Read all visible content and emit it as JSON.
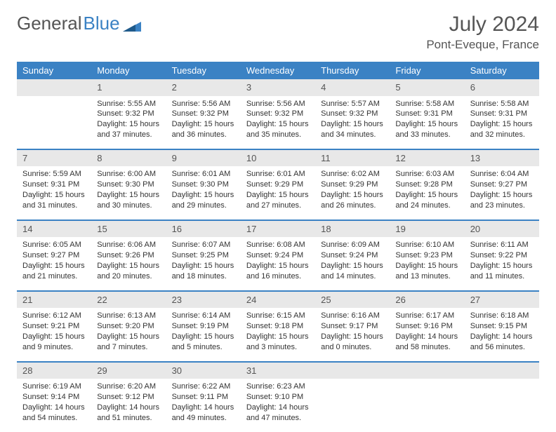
{
  "brand": {
    "part1": "General",
    "part2": "Blue"
  },
  "title": "July 2024",
  "location": "Pont-Eveque, France",
  "colors": {
    "header_bg": "#3b82c4",
    "header_text": "#ffffff",
    "daynum_bg": "#e8e8e8",
    "border_top": "#3b82c4",
    "text": "#333333"
  },
  "weekdays": [
    "Sunday",
    "Monday",
    "Tuesday",
    "Wednesday",
    "Thursday",
    "Friday",
    "Saturday"
  ],
  "weeks": [
    {
      "nums": [
        "",
        "1",
        "2",
        "3",
        "4",
        "5",
        "6"
      ],
      "cells": [
        {
          "lines": []
        },
        {
          "lines": [
            "Sunrise: 5:55 AM",
            "Sunset: 9:32 PM",
            "Daylight: 15 hours",
            "and 37 minutes."
          ]
        },
        {
          "lines": [
            "Sunrise: 5:56 AM",
            "Sunset: 9:32 PM",
            "Daylight: 15 hours",
            "and 36 minutes."
          ]
        },
        {
          "lines": [
            "Sunrise: 5:56 AM",
            "Sunset: 9:32 PM",
            "Daylight: 15 hours",
            "and 35 minutes."
          ]
        },
        {
          "lines": [
            "Sunrise: 5:57 AM",
            "Sunset: 9:32 PM",
            "Daylight: 15 hours",
            "and 34 minutes."
          ]
        },
        {
          "lines": [
            "Sunrise: 5:58 AM",
            "Sunset: 9:31 PM",
            "Daylight: 15 hours",
            "and 33 minutes."
          ]
        },
        {
          "lines": [
            "Sunrise: 5:58 AM",
            "Sunset: 9:31 PM",
            "Daylight: 15 hours",
            "and 32 minutes."
          ]
        }
      ]
    },
    {
      "nums": [
        "7",
        "8",
        "9",
        "10",
        "11",
        "12",
        "13"
      ],
      "cells": [
        {
          "lines": [
            "Sunrise: 5:59 AM",
            "Sunset: 9:31 PM",
            "Daylight: 15 hours",
            "and 31 minutes."
          ]
        },
        {
          "lines": [
            "Sunrise: 6:00 AM",
            "Sunset: 9:30 PM",
            "Daylight: 15 hours",
            "and 30 minutes."
          ]
        },
        {
          "lines": [
            "Sunrise: 6:01 AM",
            "Sunset: 9:30 PM",
            "Daylight: 15 hours",
            "and 29 minutes."
          ]
        },
        {
          "lines": [
            "Sunrise: 6:01 AM",
            "Sunset: 9:29 PM",
            "Daylight: 15 hours",
            "and 27 minutes."
          ]
        },
        {
          "lines": [
            "Sunrise: 6:02 AM",
            "Sunset: 9:29 PM",
            "Daylight: 15 hours",
            "and 26 minutes."
          ]
        },
        {
          "lines": [
            "Sunrise: 6:03 AM",
            "Sunset: 9:28 PM",
            "Daylight: 15 hours",
            "and 24 minutes."
          ]
        },
        {
          "lines": [
            "Sunrise: 6:04 AM",
            "Sunset: 9:27 PM",
            "Daylight: 15 hours",
            "and 23 minutes."
          ]
        }
      ]
    },
    {
      "nums": [
        "14",
        "15",
        "16",
        "17",
        "18",
        "19",
        "20"
      ],
      "cells": [
        {
          "lines": [
            "Sunrise: 6:05 AM",
            "Sunset: 9:27 PM",
            "Daylight: 15 hours",
            "and 21 minutes."
          ]
        },
        {
          "lines": [
            "Sunrise: 6:06 AM",
            "Sunset: 9:26 PM",
            "Daylight: 15 hours",
            "and 20 minutes."
          ]
        },
        {
          "lines": [
            "Sunrise: 6:07 AM",
            "Sunset: 9:25 PM",
            "Daylight: 15 hours",
            "and 18 minutes."
          ]
        },
        {
          "lines": [
            "Sunrise: 6:08 AM",
            "Sunset: 9:24 PM",
            "Daylight: 15 hours",
            "and 16 minutes."
          ]
        },
        {
          "lines": [
            "Sunrise: 6:09 AM",
            "Sunset: 9:24 PM",
            "Daylight: 15 hours",
            "and 14 minutes."
          ]
        },
        {
          "lines": [
            "Sunrise: 6:10 AM",
            "Sunset: 9:23 PM",
            "Daylight: 15 hours",
            "and 13 minutes."
          ]
        },
        {
          "lines": [
            "Sunrise: 6:11 AM",
            "Sunset: 9:22 PM",
            "Daylight: 15 hours",
            "and 11 minutes."
          ]
        }
      ]
    },
    {
      "nums": [
        "21",
        "22",
        "23",
        "24",
        "25",
        "26",
        "27"
      ],
      "cells": [
        {
          "lines": [
            "Sunrise: 6:12 AM",
            "Sunset: 9:21 PM",
            "Daylight: 15 hours",
            "and 9 minutes."
          ]
        },
        {
          "lines": [
            "Sunrise: 6:13 AM",
            "Sunset: 9:20 PM",
            "Daylight: 15 hours",
            "and 7 minutes."
          ]
        },
        {
          "lines": [
            "Sunrise: 6:14 AM",
            "Sunset: 9:19 PM",
            "Daylight: 15 hours",
            "and 5 minutes."
          ]
        },
        {
          "lines": [
            "Sunrise: 6:15 AM",
            "Sunset: 9:18 PM",
            "Daylight: 15 hours",
            "and 3 minutes."
          ]
        },
        {
          "lines": [
            "Sunrise: 6:16 AM",
            "Sunset: 9:17 PM",
            "Daylight: 15 hours",
            "and 0 minutes."
          ]
        },
        {
          "lines": [
            "Sunrise: 6:17 AM",
            "Sunset: 9:16 PM",
            "Daylight: 14 hours",
            "and 58 minutes."
          ]
        },
        {
          "lines": [
            "Sunrise: 6:18 AM",
            "Sunset: 9:15 PM",
            "Daylight: 14 hours",
            "and 56 minutes."
          ]
        }
      ]
    },
    {
      "nums": [
        "28",
        "29",
        "30",
        "31",
        "",
        "",
        ""
      ],
      "cells": [
        {
          "lines": [
            "Sunrise: 6:19 AM",
            "Sunset: 9:14 PM",
            "Daylight: 14 hours",
            "and 54 minutes."
          ]
        },
        {
          "lines": [
            "Sunrise: 6:20 AM",
            "Sunset: 9:12 PM",
            "Daylight: 14 hours",
            "and 51 minutes."
          ]
        },
        {
          "lines": [
            "Sunrise: 6:22 AM",
            "Sunset: 9:11 PM",
            "Daylight: 14 hours",
            "and 49 minutes."
          ]
        },
        {
          "lines": [
            "Sunrise: 6:23 AM",
            "Sunset: 9:10 PM",
            "Daylight: 14 hours",
            "and 47 minutes."
          ]
        },
        {
          "lines": []
        },
        {
          "lines": []
        },
        {
          "lines": []
        }
      ]
    }
  ]
}
